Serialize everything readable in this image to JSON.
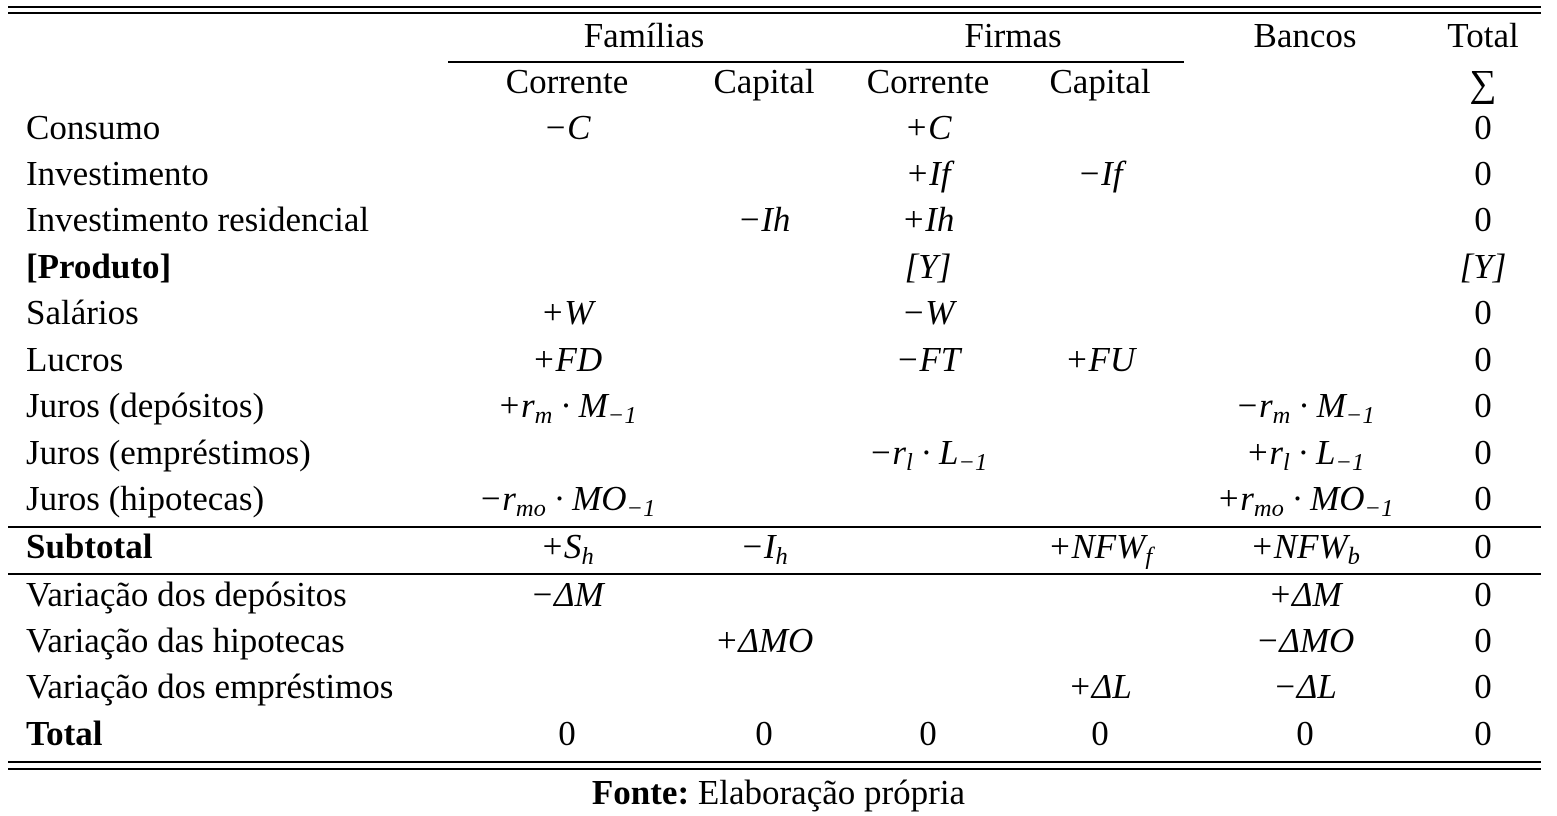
{
  "header": {
    "group_familias": "Famílias",
    "group_firmas": "Firmas",
    "bancos": "Bancos",
    "total": "Total",
    "sum_symbol": "∑",
    "sub_corrente_1": "Corrente",
    "sub_capital_1": "Capital",
    "sub_corrente_2": "Corrente",
    "sub_capital_2": "Capital"
  },
  "rows": [
    {
      "label": "Consumo",
      "fc": "−C",
      "fk": "",
      "firc": "+C",
      "firk": "",
      "b": "",
      "t": "0"
    },
    {
      "label": "Investimento",
      "fc": "",
      "fk": "",
      "firc": "+If",
      "firk": "−If",
      "b": "",
      "t": "0"
    },
    {
      "label": "Investimento residencial",
      "fc": "",
      "fk": "−Ih",
      "firc": "+Ih",
      "firk": "",
      "b": "",
      "t": "0"
    },
    {
      "label": "[Produto]",
      "fc": "",
      "fk": "",
      "firc": "[Y]",
      "firk": "",
      "b": "",
      "t": "[Y]"
    },
    {
      "label": "Salários",
      "fc": "+W",
      "fk": "",
      "firc": "−W",
      "firk": "",
      "b": "",
      "t": "0"
    },
    {
      "label": "Lucros",
      "fc": "+FD",
      "fk": "",
      "firc": "−FT",
      "firk": "+FU",
      "b": "",
      "t": "0"
    },
    {
      "label": "Juros (depósitos)",
      "fc": "+r_m · M_−1",
      "fk": "",
      "firc": "",
      "firk": "",
      "b": "−r_m · M_−1",
      "t": "0"
    },
    {
      "label": "Juros (empréstimos)",
      "fc": "",
      "fk": "",
      "firc": "−r_l · L_−1",
      "firk": "",
      "b": "+r_l · L_−1",
      "t": "0"
    },
    {
      "label": "Juros (hipotecas)",
      "fc": "−r_mo · MO_−1",
      "fk": "",
      "firc": "",
      "firk": "",
      "b": "+r_mo · MO_−1",
      "t": "0"
    },
    {
      "label": "Subtotal",
      "fc": "+S_h",
      "fk": "−I_h",
      "firc": "",
      "firk": "+NFW_f",
      "b": "+NFW_b",
      "t": "0"
    },
    {
      "label": "Variação dos depósitos",
      "fc": "−ΔM",
      "fk": "",
      "firc": "",
      "firk": "",
      "b": "+ΔM",
      "t": "0"
    },
    {
      "label": "Variação das hipotecas",
      "fc": "",
      "fk": "+ΔMO",
      "firc": "",
      "firk": "",
      "b": "−ΔMO",
      "t": "0"
    },
    {
      "label": "Variação dos empréstimos",
      "fc": "",
      "fk": "",
      "firc": "",
      "firk": "+ΔL",
      "b": "−ΔL",
      "t": "0"
    },
    {
      "label": "Total",
      "fc": "0",
      "fk": "0",
      "firc": "0",
      "firk": "0",
      "b": "0",
      "t": "0"
    }
  ],
  "caption": {
    "bold": "Fonte:",
    "text": " Elaboração própria"
  }
}
